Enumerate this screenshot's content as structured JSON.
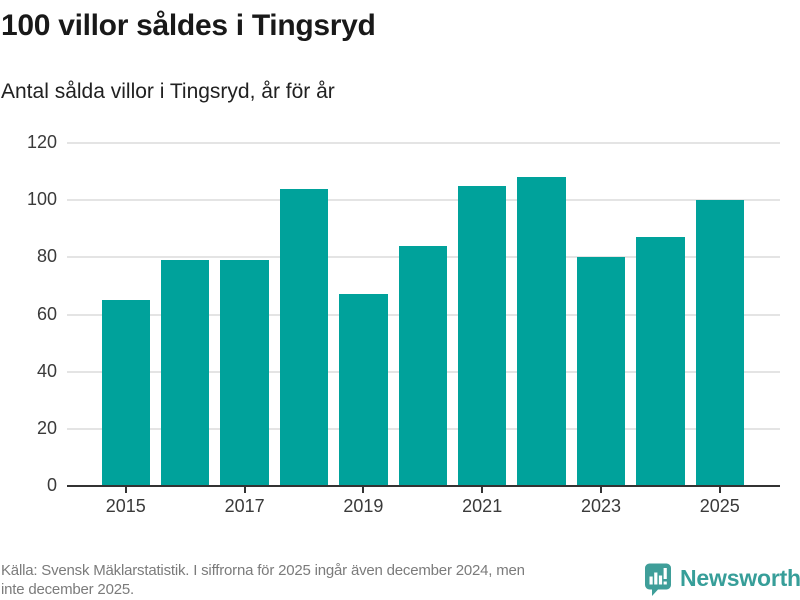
{
  "header": {
    "title": "100 villor såldes i Tingsryd",
    "subtitle": "Antal sålda villor i Tingsryd, år för år"
  },
  "chart_data": {
    "type": "bar",
    "categories": [
      "2015",
      "2016",
      "2017",
      "2018",
      "2019",
      "2020",
      "2021",
      "2022",
      "2023",
      "2024",
      "2025"
    ],
    "values": [
      65,
      79,
      79,
      104,
      67,
      84,
      105,
      108,
      80,
      87,
      100
    ],
    "title": "100 villor såldes i Tingsryd",
    "subtitle": "Antal sålda villor i Tingsryd, år för år",
    "xlabel": "",
    "ylabel": "",
    "ylim": [
      0,
      120
    ],
    "yticks": [
      0,
      20,
      40,
      60,
      80,
      100,
      120
    ],
    "xtick_labels": [
      "2015",
      "2017",
      "2019",
      "2021",
      "2023",
      "2025"
    ],
    "grid": "horizontal",
    "legend": "none",
    "bar_color": "#00a29b",
    "grid_color": "#e4e4e4",
    "axis_color": "#333333"
  },
  "footer": {
    "source_lines": [
      "Källa: Svensk Mäklarstatistik. I siffrorna för 2025 ingår även december 2024, men",
      "inte december 2025."
    ]
  },
  "branding": {
    "name": "Newsworthy",
    "icon": "speech-bubble-bar-chart-icon",
    "icon_color": "#3f9e99",
    "text_color": "#379e99"
  }
}
